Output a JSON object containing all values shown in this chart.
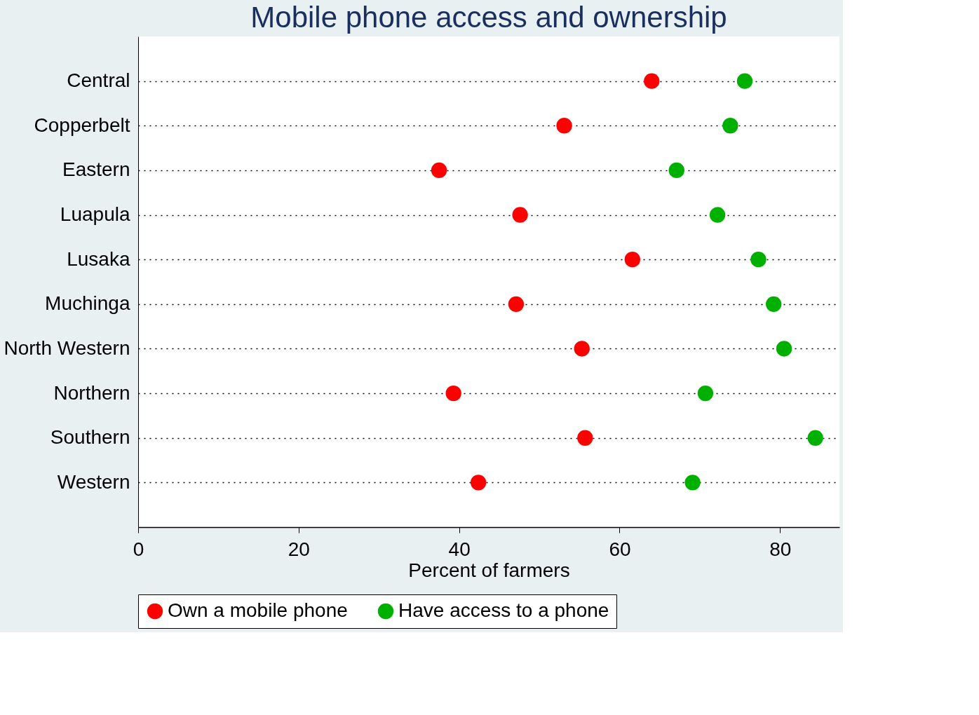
{
  "chart_data": {
    "type": "scatter",
    "title": "Mobile phone access and ownership",
    "xlabel": "Percent of farmers",
    "categories": [
      "Central",
      "Copperbelt",
      "Eastern",
      "Luapula",
      "Lusaka",
      "Muchinga",
      "North Western",
      "Northern",
      "Southern",
      "Western"
    ],
    "orientation": "horizontal",
    "series": [
      {
        "name": "Own a mobile phone",
        "color": "#ff0000",
        "values": [
          64.0,
          53.1,
          37.5,
          47.6,
          61.6,
          47.1,
          55.3,
          39.3,
          55.7,
          42.4
        ]
      },
      {
        "name": "Have access to a phone",
        "color": "#00b000",
        "values": [
          75.6,
          73.8,
          67.1,
          72.2,
          77.3,
          79.2,
          80.5,
          70.7,
          84.4,
          69.1
        ]
      }
    ],
    "xlim": [
      0,
      87.4
    ],
    "xticks": [
      0,
      20,
      40,
      60,
      80
    ],
    "grid": "y",
    "legend": "bottom",
    "marker": "circle"
  }
}
